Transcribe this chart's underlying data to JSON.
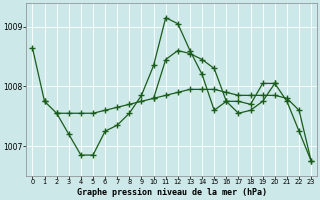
{
  "background_color": "#cce8e8",
  "grid_color": "#ffffff",
  "line_color": "#1a5c1a",
  "marker": "+",
  "marker_size": 4,
  "marker_lw": 1.0,
  "line_width": 0.9,
  "xlabel": "Graphe pression niveau de la mer (hPa)",
  "xlim": [
    -0.5,
    23.5
  ],
  "ylim": [
    1006.5,
    1009.4
  ],
  "yticks": [
    1007,
    1008,
    1009
  ],
  "xticks": [
    0,
    1,
    2,
    3,
    4,
    5,
    6,
    7,
    8,
    9,
    10,
    11,
    12,
    13,
    14,
    15,
    16,
    17,
    18,
    19,
    20,
    21,
    22,
    23
  ],
  "series": [
    [
      1008.65,
      1007.75,
      null,
      null,
      null,
      null,
      null,
      null,
      null,
      null,
      null,
      null,
      null,
      null,
      null,
      null,
      null,
      null,
      null,
      null,
      null,
      null,
      null,
      null
    ],
    [
      null,
      1007.75,
      1007.55,
      1007.55,
      1007.55,
      1007.55,
      1007.6,
      1007.65,
      1007.7,
      1007.75,
      1007.8,
      1007.85,
      1007.9,
      1007.95,
      1007.95,
      1007.95,
      1007.9,
      1007.85,
      1007.85,
      1007.85,
      1007.85,
      1007.8,
      1007.6,
      1006.75
    ],
    [
      null,
      null,
      1007.55,
      1007.2,
      1006.85,
      1006.85,
      1007.25,
      1007.35,
      1007.55,
      1007.85,
      1008.35,
      1009.15,
      1009.05,
      1008.6,
      1008.2,
      1007.6,
      1007.75,
      1007.55,
      1007.6,
      1007.75,
      1008.05,
      1007.75,
      1007.25,
      1006.75
    ],
    [
      null,
      null,
      null,
      null,
      null,
      null,
      null,
      null,
      null,
      null,
      1007.8,
      1008.45,
      1008.6,
      1008.55,
      1008.45,
      1008.3,
      1007.75,
      1007.75,
      1007.7,
      1008.05,
      1008.05,
      null,
      null,
      null
    ]
  ]
}
